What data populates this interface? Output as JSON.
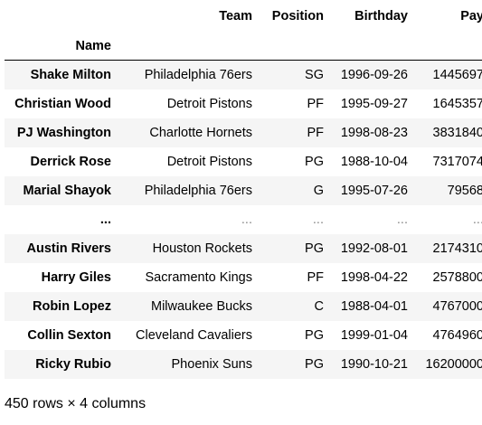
{
  "table": {
    "columns": [
      "Team",
      "Position",
      "Birthday",
      "Pay"
    ],
    "index_name": "Name",
    "rows": [
      {
        "name": "Shake Milton",
        "team": "Philadelphia 76ers",
        "position": "SG",
        "birthday": "1996-09-26",
        "pay": "1445697"
      },
      {
        "name": "Christian Wood",
        "team": "Detroit Pistons",
        "position": "PF",
        "birthday": "1995-09-27",
        "pay": "1645357"
      },
      {
        "name": "PJ Washington",
        "team": "Charlotte Hornets",
        "position": "PF",
        "birthday": "1998-08-23",
        "pay": "3831840"
      },
      {
        "name": "Derrick Rose",
        "team": "Detroit Pistons",
        "position": "PG",
        "birthday": "1988-10-04",
        "pay": "7317074"
      },
      {
        "name": "Marial Shayok",
        "team": "Philadelphia 76ers",
        "position": "G",
        "birthday": "1995-07-26",
        "pay": "79568"
      },
      {
        "name": "...",
        "team": "...",
        "position": "...",
        "birthday": "...",
        "pay": "..."
      },
      {
        "name": "Austin Rivers",
        "team": "Houston Rockets",
        "position": "PG",
        "birthday": "1992-08-01",
        "pay": "2174310"
      },
      {
        "name": "Harry Giles",
        "team": "Sacramento Kings",
        "position": "PF",
        "birthday": "1998-04-22",
        "pay": "2578800"
      },
      {
        "name": "Robin Lopez",
        "team": "Milwaukee Bucks",
        "position": "C",
        "birthday": "1988-04-01",
        "pay": "4767000"
      },
      {
        "name": "Collin Sexton",
        "team": "Cleveland Cavaliers",
        "position": "PG",
        "birthday": "1999-01-04",
        "pay": "4764960"
      },
      {
        "name": "Ricky Rubio",
        "team": "Phoenix Suns",
        "position": "PG",
        "birthday": "1990-10-21",
        "pay": "16200000"
      }
    ],
    "footer": "450 rows × 4 columns"
  }
}
